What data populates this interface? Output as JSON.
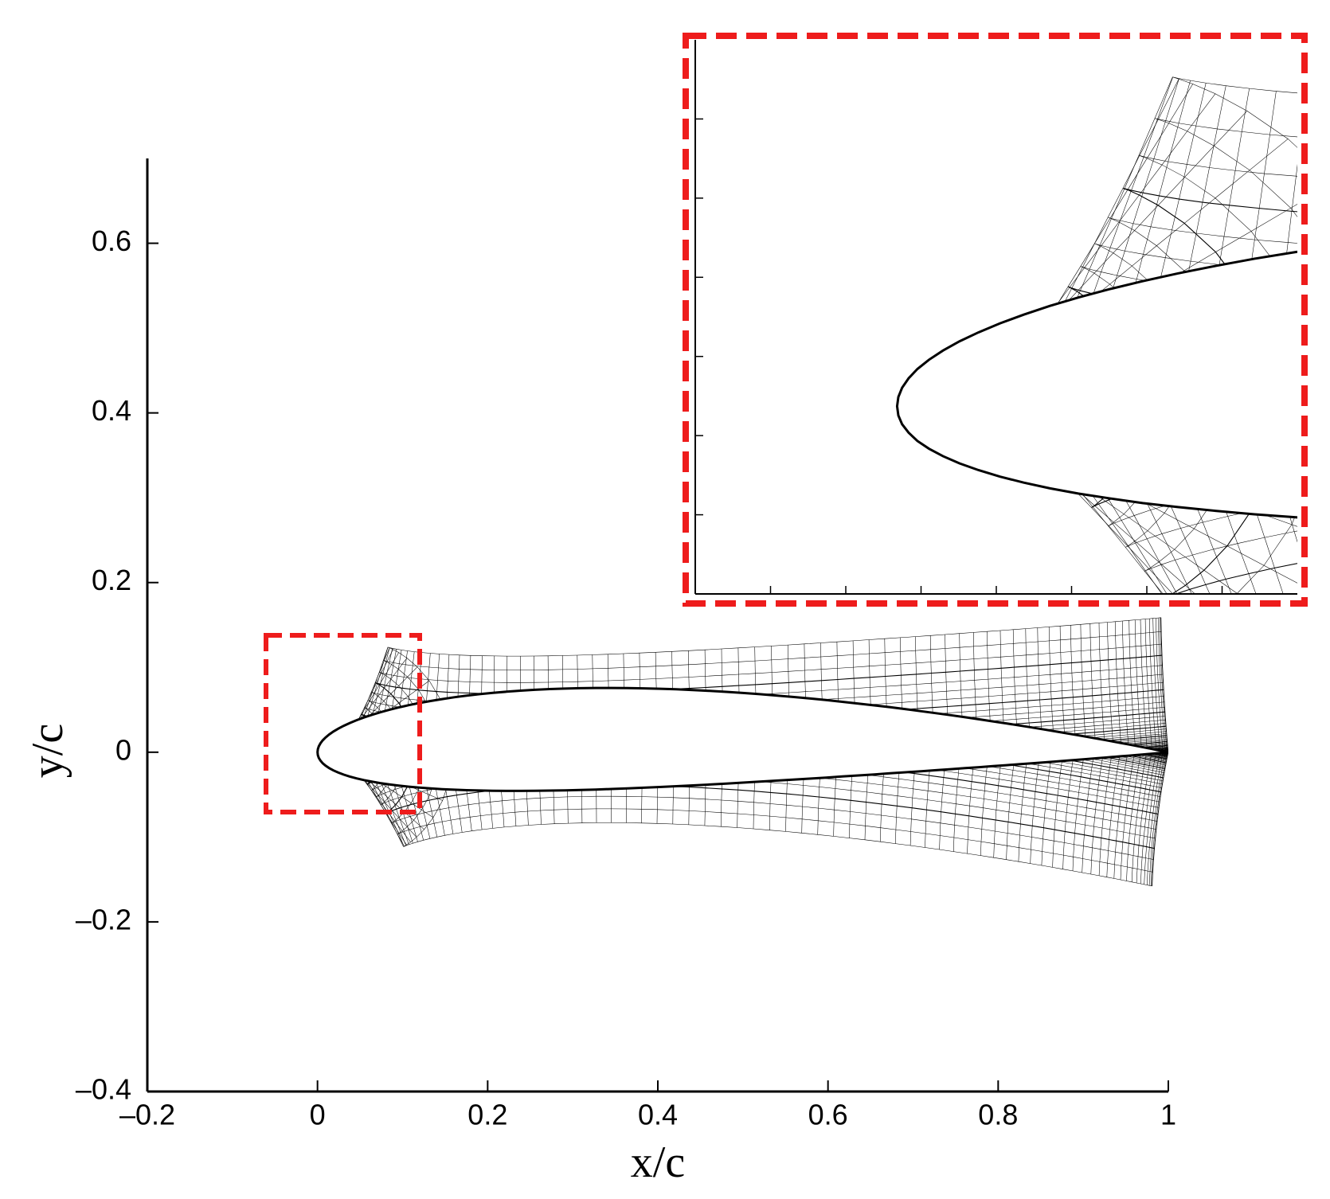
{
  "chart_data": {
    "type": "mesh",
    "xlabel": "x/c",
    "ylabel": "y/c",
    "xlim": [
      -0.2,
      1
    ],
    "ylim": [
      -0.4,
      0.7
    ],
    "xticks": [
      {
        "value": -0.2,
        "label": "–0.2"
      },
      0,
      0.2,
      0.4,
      0.6,
      0.8,
      1
    ],
    "yticks": [
      {
        "value": -0.4,
        "label": "–0.4"
      },
      {
        "value": -0.2,
        "label": "–0.2"
      },
      0,
      0.2,
      0.4,
      0.6
    ],
    "color": "#000000",
    "highlight_color": "#ee1c1c"
  }
}
